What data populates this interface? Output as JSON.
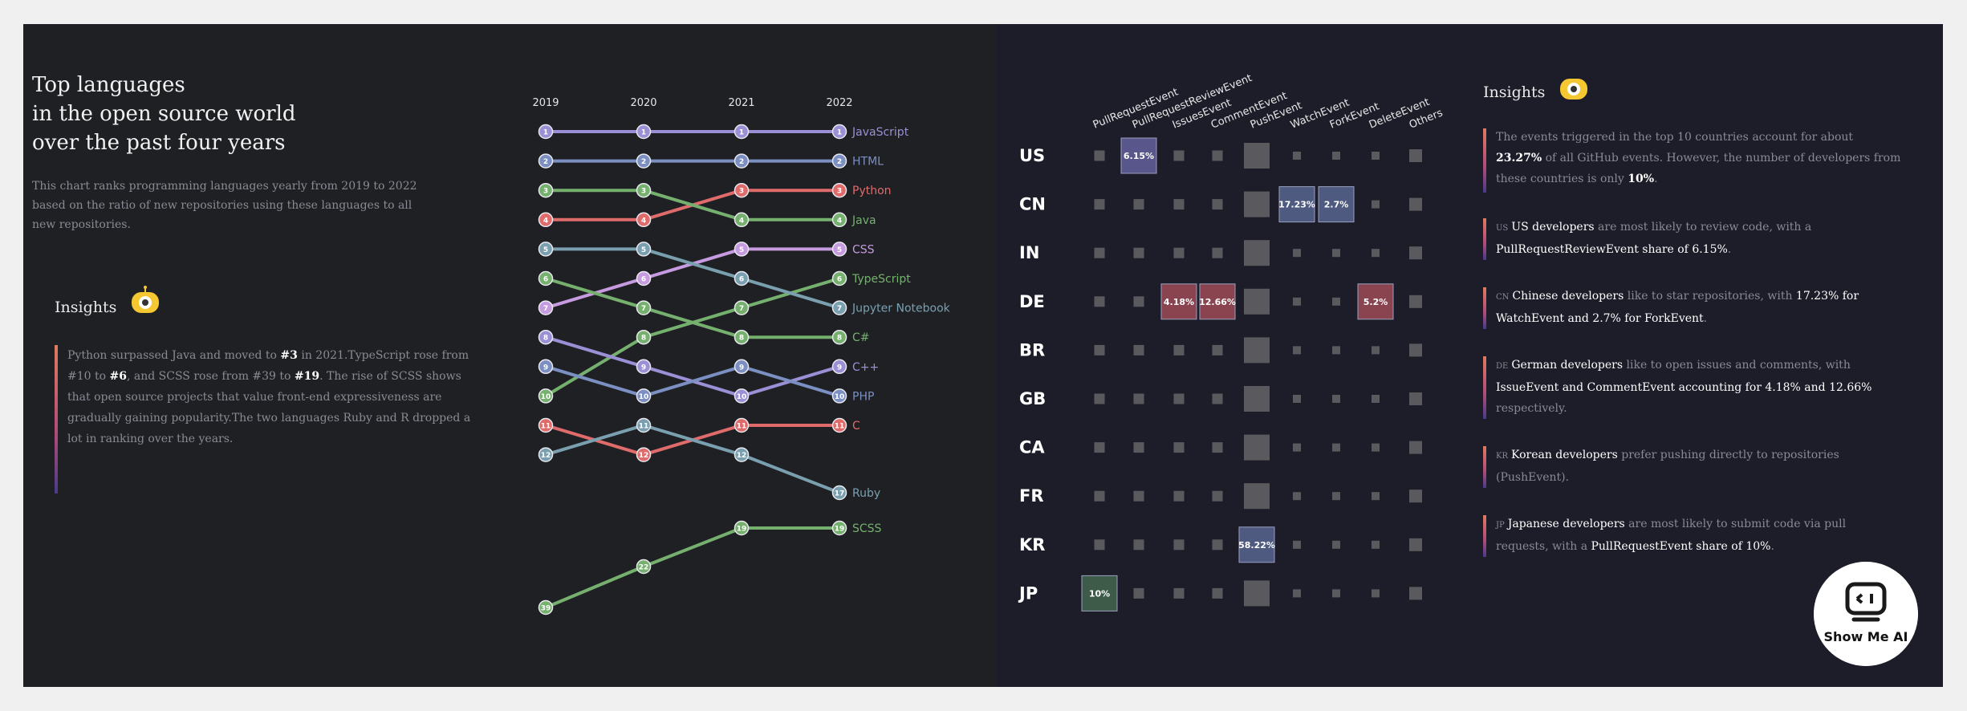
{
  "left": {
    "title_lines": [
      "Top languages",
      "in the open source world",
      "over the past four years"
    ],
    "description_lines": [
      "This chart ranks programming languages yearly from 2019 to 2022",
      "based on the ratio of new repositories using these languages to all",
      "new repositories."
    ],
    "insights_heading": "Insights",
    "insights_lines": [
      [
        {
          "t": "Python surpassed Java and moved to "
        },
        {
          "t": "#3",
          "b": true
        },
        {
          "t": " in 2021.TypeScript rose from"
        }
      ],
      [
        {
          "t": "#10 to "
        },
        {
          "t": "#6",
          "b": true
        },
        {
          "t": ", and SCSS rose from #39 to "
        },
        {
          "t": "#19",
          "b": true
        },
        {
          "t": ". The rise of SCSS shows"
        }
      ],
      [
        {
          "t": "that open source projects that value front-end expressiveness are"
        }
      ],
      [
        {
          "t": "gradually gaining popularity.The two languages Ruby and R dropped a"
        }
      ],
      [
        {
          "t": "lot in ranking over the years."
        }
      ]
    ]
  },
  "right": {
    "insights_heading": "Insights",
    "notes": [
      {
        "lines": [
          [
            {
              "t": "The events triggered in the top 10 countries account for about"
            }
          ],
          [
            {
              "t": "23.27%",
              "b": true
            },
            {
              "t": " of all GitHub events. However, the number of developers from"
            }
          ],
          [
            {
              "t": "these countries is only "
            },
            {
              "t": "10%",
              "b": true
            },
            {
              "t": "."
            }
          ]
        ]
      },
      {
        "code": "US",
        "lines": [
          [
            {
              "t": "US developers",
              "h": true
            },
            {
              "t": " are most likely to review code, with a"
            }
          ],
          [
            {
              "t": "PullRequestReviewEvent share of 6.15%",
              "h": true
            },
            {
              "t": "."
            }
          ]
        ]
      },
      {
        "code": "CN",
        "lines": [
          [
            {
              "t": "Chinese developers",
              "h": true
            },
            {
              "t": " like to star repositories, with "
            },
            {
              "t": "17.23% for",
              "h": true
            }
          ],
          [
            {
              "t": "WatchEvent and 2.7% for ForkEvent",
              "h": true
            },
            {
              "t": "."
            }
          ]
        ]
      },
      {
        "code": "DE",
        "lines": [
          [
            {
              "t": "German developers",
              "h": true
            },
            {
              "t": " like to open issues and comments, with"
            }
          ],
          [
            {
              "t": "IssueEvent and CommentEvent accounting for 4.18% and 12.66%",
              "h": true
            }
          ],
          [
            {
              "t": "respectively."
            }
          ]
        ]
      },
      {
        "code": "KR",
        "lines": [
          [
            {
              "t": "Korean developers",
              "h": true
            },
            {
              "t": " prefer pushing directly to repositories"
            }
          ],
          [
            {
              "t": "(PushEvent)."
            }
          ]
        ]
      },
      {
        "code": "JP",
        "lines": [
          [
            {
              "t": "Japanese developers",
              "h": true
            },
            {
              "t": " are most likely to submit code via pull"
            }
          ],
          [
            {
              "t": "requests, with a "
            },
            {
              "t": "PullRequestEvent share of 10%",
              "h": true
            },
            {
              "t": "."
            }
          ]
        ]
      }
    ]
  },
  "logo_text": "Show Me AI",
  "chart_data": [
    {
      "type": "line",
      "subtype": "bump",
      "x": [
        "2019",
        "2020",
        "2021",
        "2022"
      ],
      "ylabel": "",
      "series": [
        {
          "name": "JavaScript",
          "values": [
            1,
            1,
            1,
            1
          ],
          "color": "#9b8fd6"
        },
        {
          "name": "HTML",
          "values": [
            2,
            2,
            2,
            2
          ],
          "color": "#7b8fc2"
        },
        {
          "name": "Python",
          "values": [
            4,
            4,
            3,
            3
          ],
          "color": "#e06b6b"
        },
        {
          "name": "Java",
          "values": [
            3,
            3,
            4,
            4
          ],
          "color": "#76b06e"
        },
        {
          "name": "CSS",
          "values": [
            7,
            6,
            5,
            5
          ],
          "color": "#c79be0"
        },
        {
          "name": "TypeScript",
          "values": [
            10,
            8,
            7,
            6
          ],
          "color": "#76b06e"
        },
        {
          "name": "Jupyter Notebook",
          "values": [
            5,
            5,
            6,
            7
          ],
          "color": "#7aa0b0"
        },
        {
          "name": "C#",
          "values": [
            6,
            7,
            8,
            8
          ],
          "color": "#76b06e"
        },
        {
          "name": "C++",
          "values": [
            8,
            9,
            10,
            9
          ],
          "color": "#9b8fd6"
        },
        {
          "name": "PHP",
          "values": [
            9,
            10,
            9,
            10
          ],
          "color": "#7b8fc2"
        },
        {
          "name": "C",
          "values": [
            11,
            12,
            11,
            11
          ],
          "color": "#e06b6b"
        },
        {
          "name": "Ruby",
          "values": [
            12,
            11,
            12,
            17
          ],
          "color": "#7aa0b0"
        },
        {
          "name": "SCSS",
          "values": [
            39,
            22,
            19,
            19
          ],
          "color": "#76b06e"
        }
      ]
    },
    {
      "type": "heatmap",
      "columns": [
        "PullRequestEvent",
        "PullRequestReviewEvent",
        "IssuesEvent",
        "CommentEvent",
        "PushEvent",
        "WatchEvent",
        "ForkEvent",
        "DeleteEvent",
        "Others"
      ],
      "rows": [
        "US",
        "CN",
        "IN",
        "DE",
        "BR",
        "GB",
        "CA",
        "FR",
        "KR",
        "JP"
      ],
      "highlights": [
        {
          "row": "US",
          "col": "PullRequestReviewEvent",
          "label": "6.15%",
          "color": "#58568a"
        },
        {
          "row": "CN",
          "col": "WatchEvent",
          "label": "17.23%",
          "color": "#4e5a80"
        },
        {
          "row": "CN",
          "col": "ForkEvent",
          "label": "2.7%",
          "color": "#4e5a80"
        },
        {
          "row": "DE",
          "col": "IssuesEvent",
          "label": "4.18%",
          "color": "#8a4450"
        },
        {
          "row": "DE",
          "col": "CommentEvent",
          "label": "12.66%",
          "color": "#8a4450"
        },
        {
          "row": "DE",
          "col": "DeleteEvent",
          "label": "5.2%",
          "color": "#8a4450"
        },
        {
          "row": "KR",
          "col": "PushEvent",
          "label": "58.22%",
          "color": "#4e5a80"
        },
        {
          "row": "JP",
          "col": "PullRequestEvent",
          "label": "10%",
          "color": "#3e5a48"
        }
      ]
    }
  ]
}
